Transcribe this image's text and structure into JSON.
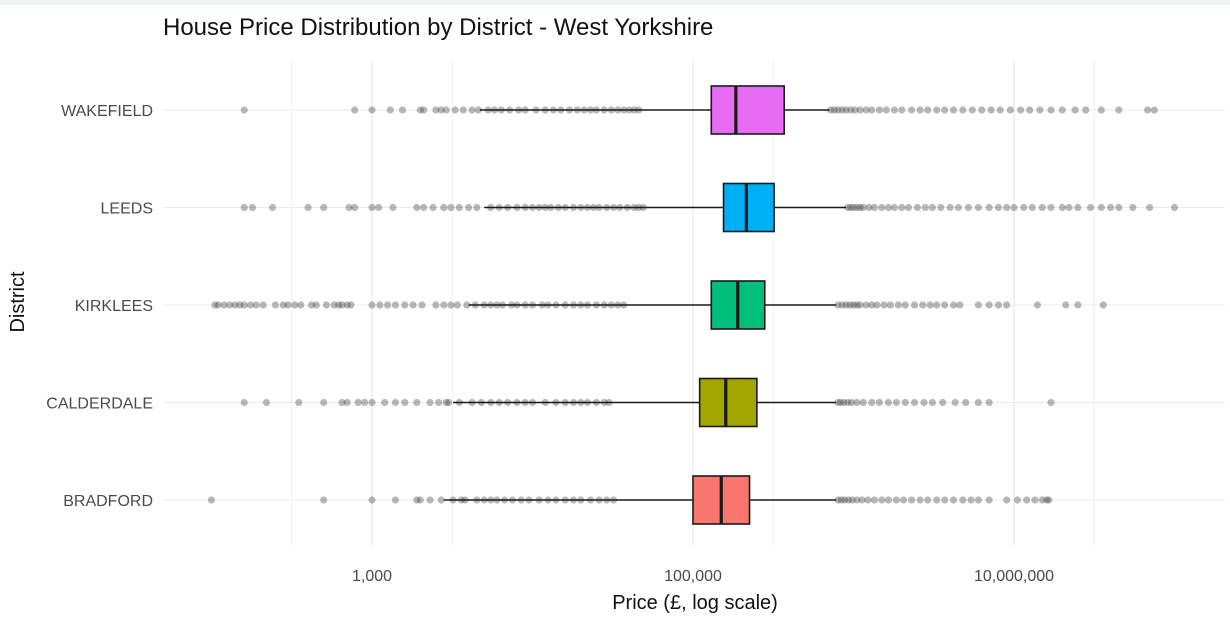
{
  "chart_data": {
    "type": "boxplot",
    "title": "House Price Distribution by District - West Yorkshire",
    "xlabel": "Price (£, log scale)",
    "ylabel": "District",
    "x_scale": "log10",
    "xlim": [
      70,
      200000000
    ],
    "grid": true,
    "legend": "none",
    "x_ticks": [
      {
        "value": 1000,
        "label": "1,000"
      },
      {
        "value": 100000,
        "label": "100,000"
      },
      {
        "value": 10000000,
        "label": "10,000,000"
      }
    ],
    "categories": [
      "WAKEFIELD",
      "LEEDS",
      "KIRKLEES",
      "CALDERDALE",
      "BRADFORD"
    ],
    "boxes": [
      {
        "name": "WAKEFIELD",
        "color": "#e76bf3",
        "whisker_low": 4700,
        "q1": 130000,
        "median": 185000,
        "q3": 370000,
        "whisker_high": 710000,
        "outliers": [
          160,
          780,
          1000,
          1300,
          1550,
          2000,
          2100,
          2500,
          2700,
          2900,
          3300,
          3700,
          4200,
          4600,
          5300,
          5800,
          6400,
          7200,
          8200,
          9000,
          10500,
          12000,
          13500,
          15000,
          17000,
          19000,
          21000,
          23000,
          25000,
          28000,
          31000,
          34000,
          37000,
          40000,
          43000,
          46000,
          720000,
          760000,
          800000,
          850000,
          900000,
          960000,
          1020000,
          1100000,
          1200000,
          1300000,
          1450000,
          1600000,
          1800000,
          2000000,
          2300000,
          2600000,
          2900000,
          3300000,
          3700000,
          4200000,
          4800000,
          5500000,
          6300000,
          7200000,
          8200000,
          9500000,
          11000000,
          12500000,
          14500000,
          17000000,
          20000000,
          24000000,
          28000000,
          35000000,
          45000000,
          68000000,
          75000000
        ]
      },
      {
        "name": "LEEDS",
        "color": "#00b0f6",
        "whisker_low": 5000,
        "q1": 155000,
        "median": 215000,
        "q3": 320000,
        "whisker_high": 900000,
        "outliers": [
          160,
          180,
          240,
          400,
          500,
          720,
          780,
          1000,
          1100,
          1350,
          1900,
          2100,
          2400,
          2800,
          3100,
          3500,
          4000,
          4500,
          5500,
          6200,
          7000,
          8000,
          9000,
          10000,
          11000,
          12000,
          13000,
          14500,
          16000,
          18000,
          20000,
          22000,
          24000,
          26000,
          29000,
          32000,
          35000,
          39000,
          43000,
          46000,
          49000,
          920000,
          960000,
          1000000,
          1050000,
          1100000,
          1150000,
          1250000,
          1350000,
          1500000,
          1650000,
          1800000,
          2000000,
          2200000,
          2500000,
          2800000,
          3100000,
          3500000,
          4000000,
          4500000,
          5200000,
          6000000,
          7000000,
          8000000,
          9000000,
          10000000,
          11500000,
          13000000,
          15000000,
          17000000,
          20000000,
          22000000,
          25000000,
          30000000,
          35000000,
          40000000,
          45000000,
          55000000,
          70000000,
          100000000
        ]
      },
      {
        "name": "KIRKLEES",
        "color": "#00bf7d",
        "whisker_low": 4000,
        "q1": 130000,
        "median": 190000,
        "q3": 280000,
        "whisker_high": 780000,
        "outliers": [
          105,
          110,
          120,
          130,
          140,
          150,
          160,
          175,
          190,
          210,
          250,
          280,
          300,
          330,
          360,
          420,
          450,
          520,
          580,
          620,
          650,
          700,
          740,
          1000,
          1120,
          1250,
          1400,
          1600,
          1800,
          2050,
          2500,
          2800,
          3100,
          3400,
          3900,
          4400,
          5000,
          5500,
          6000,
          6500,
          7400,
          8000,
          9000,
          10000,
          11500,
          12500,
          14000,
          16000,
          18000,
          20000,
          22000,
          25000,
          28000,
          31000,
          34000,
          37000,
          800000,
          850000,
          900000,
          950000,
          1000000,
          1050000,
          1100000,
          1200000,
          1300000,
          1400000,
          1550000,
          1700000,
          1900000,
          2100000,
          2400000,
          2700000,
          3000000,
          3300000,
          3700000,
          4200000,
          4600000,
          6000000,
          7000000,
          8000000,
          9000000,
          14000000,
          21000000,
          25000000,
          36000000
        ]
      },
      {
        "name": "CALDERDALE",
        "color": "#a3a500",
        "whisker_low": 3200,
        "q1": 110000,
        "median": 160000,
        "q3": 250000,
        "whisker_high": 780000,
        "outliers": [
          160,
          220,
          350,
          500,
          650,
          700,
          820,
          900,
          1000,
          1200,
          1400,
          1600,
          1900,
          2300,
          2600,
          2900,
          3000,
          3500,
          4200,
          4800,
          5500,
          6200,
          7000,
          8000,
          9000,
          10000,
          12000,
          14000,
          16000,
          18000,
          20000,
          22000,
          25000,
          28000,
          30000,
          800000,
          830000,
          870000,
          920000,
          970000,
          1050000,
          1150000,
          1300000,
          1450000,
          1650000,
          1850000,
          2100000,
          2400000,
          2750000,
          3100000,
          3600000,
          4300000,
          5000000,
          6000000,
          7000000,
          17000000
        ]
      },
      {
        "name": "BRADFORD",
        "color": "#f8766d",
        "whisker_low": 2800,
        "q1": 100000,
        "median": 150000,
        "q3": 225000,
        "whisker_high": 780000,
        "outliers": [
          100,
          500,
          1000,
          1400,
          1900,
          2000,
          2300,
          2700,
          3200,
          3600,
          3800,
          4500,
          5000,
          5500,
          6000,
          6700,
          7500,
          8500,
          9500,
          11000,
          12500,
          14000,
          16000,
          18000,
          20000,
          23000,
          26000,
          29000,
          32000,
          800000,
          840000,
          880000,
          930000,
          980000,
          1050000,
          1130000,
          1230000,
          1350000,
          1500000,
          1650000,
          1850000,
          2050000,
          2300000,
          2600000,
          2900000,
          3300000,
          3700000,
          4200000,
          4800000,
          5400000,
          6000000,
          7000000,
          9000000,
          10500000,
          12000000,
          13500000,
          15000000,
          16000000,
          16500000
        ]
      }
    ]
  }
}
